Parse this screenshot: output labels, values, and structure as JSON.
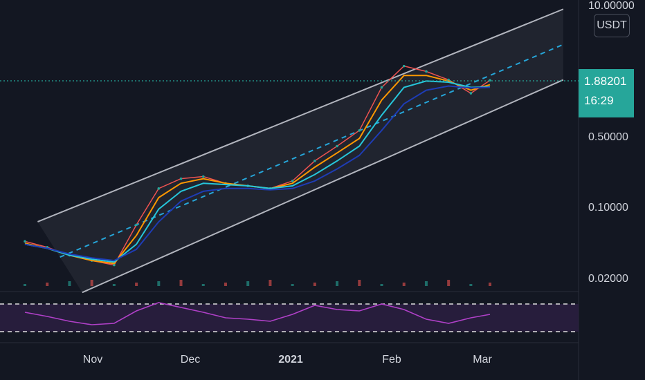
{
  "unit_label": "USDT",
  "last_price": "1.88201",
  "countdown": "16:29",
  "colors": {
    "background": "#131722",
    "up": "#26a69a",
    "down": "#ef5350",
    "ema_fast": "#ff9800",
    "ema_mid": "#26c6da",
    "ema_slow": "#1e3cb4",
    "channel": "#b2b5be",
    "midline": "#26a6d9",
    "rsi": "#b040c8"
  },
  "chart_data": {
    "type": "line",
    "yscale": "log",
    "y_ticks": [
      "10.00000",
      "0.50000",
      "0.10000",
      "0.02000"
    ],
    "x_ticks": [
      "Nov",
      "Dec",
      "2021",
      "Feb",
      "Mar"
    ],
    "ylim": [
      0.016,
      10.5
    ],
    "x": [
      "2020-10-08",
      "2020-10-15",
      "2020-10-22",
      "2020-10-29",
      "2020-11-05",
      "2020-11-12",
      "2020-11-19",
      "2020-11-26",
      "2020-12-03",
      "2020-12-10",
      "2020-12-17",
      "2020-12-24",
      "2020-12-31",
      "2021-01-07",
      "2021-01-14",
      "2021-01-21",
      "2021-01-28",
      "2021-02-04",
      "2021-02-11",
      "2021-02-18",
      "2021-02-25",
      "2021-03-03"
    ],
    "series": [
      {
        "values": [
          0.048,
          0.042,
          0.035,
          0.031,
          0.028,
          0.07,
          0.16,
          0.2,
          0.21,
          0.18,
          0.17,
          0.16,
          0.19,
          0.3,
          0.42,
          0.6,
          1.6,
          2.6,
          2.3,
          1.9,
          1.4,
          1.88
        ]
      },
      {
        "values": [
          0.046,
          0.041,
          0.035,
          0.031,
          0.029,
          0.055,
          0.13,
          0.18,
          0.2,
          0.18,
          0.17,
          0.16,
          0.18,
          0.26,
          0.36,
          0.5,
          1.2,
          2.1,
          2.1,
          1.85,
          1.5,
          1.7
        ]
      },
      {
        "values": [
          0.045,
          0.041,
          0.035,
          0.032,
          0.03,
          0.045,
          0.1,
          0.15,
          0.18,
          0.175,
          0.17,
          0.16,
          0.17,
          0.22,
          0.3,
          0.42,
          0.85,
          1.6,
          1.85,
          1.8,
          1.6,
          1.62
        ]
      },
      {
        "values": [
          0.045,
          0.041,
          0.036,
          0.033,
          0.031,
          0.04,
          0.075,
          0.12,
          0.15,
          0.16,
          0.16,
          0.155,
          0.16,
          0.19,
          0.25,
          0.34,
          0.6,
          1.1,
          1.5,
          1.65,
          1.58,
          1.6
        ]
      }
    ],
    "channel": {
      "upper_start": [
        0.075,
        "2020-10-12"
      ],
      "upper_end": [
        9.5,
        "2021-03-26"
      ],
      "lower_start": [
        0.015,
        "2020-10-26"
      ],
      "lower_end": [
        1.9,
        "2021-03-26"
      ]
    },
    "rsi": [
      58,
      52,
      45,
      40,
      42,
      60,
      72,
      65,
      58,
      50,
      48,
      45,
      55,
      68,
      62,
      60,
      70,
      62,
      48,
      42,
      50,
      55
    ],
    "rsi_levels": [
      70,
      30
    ]
  }
}
